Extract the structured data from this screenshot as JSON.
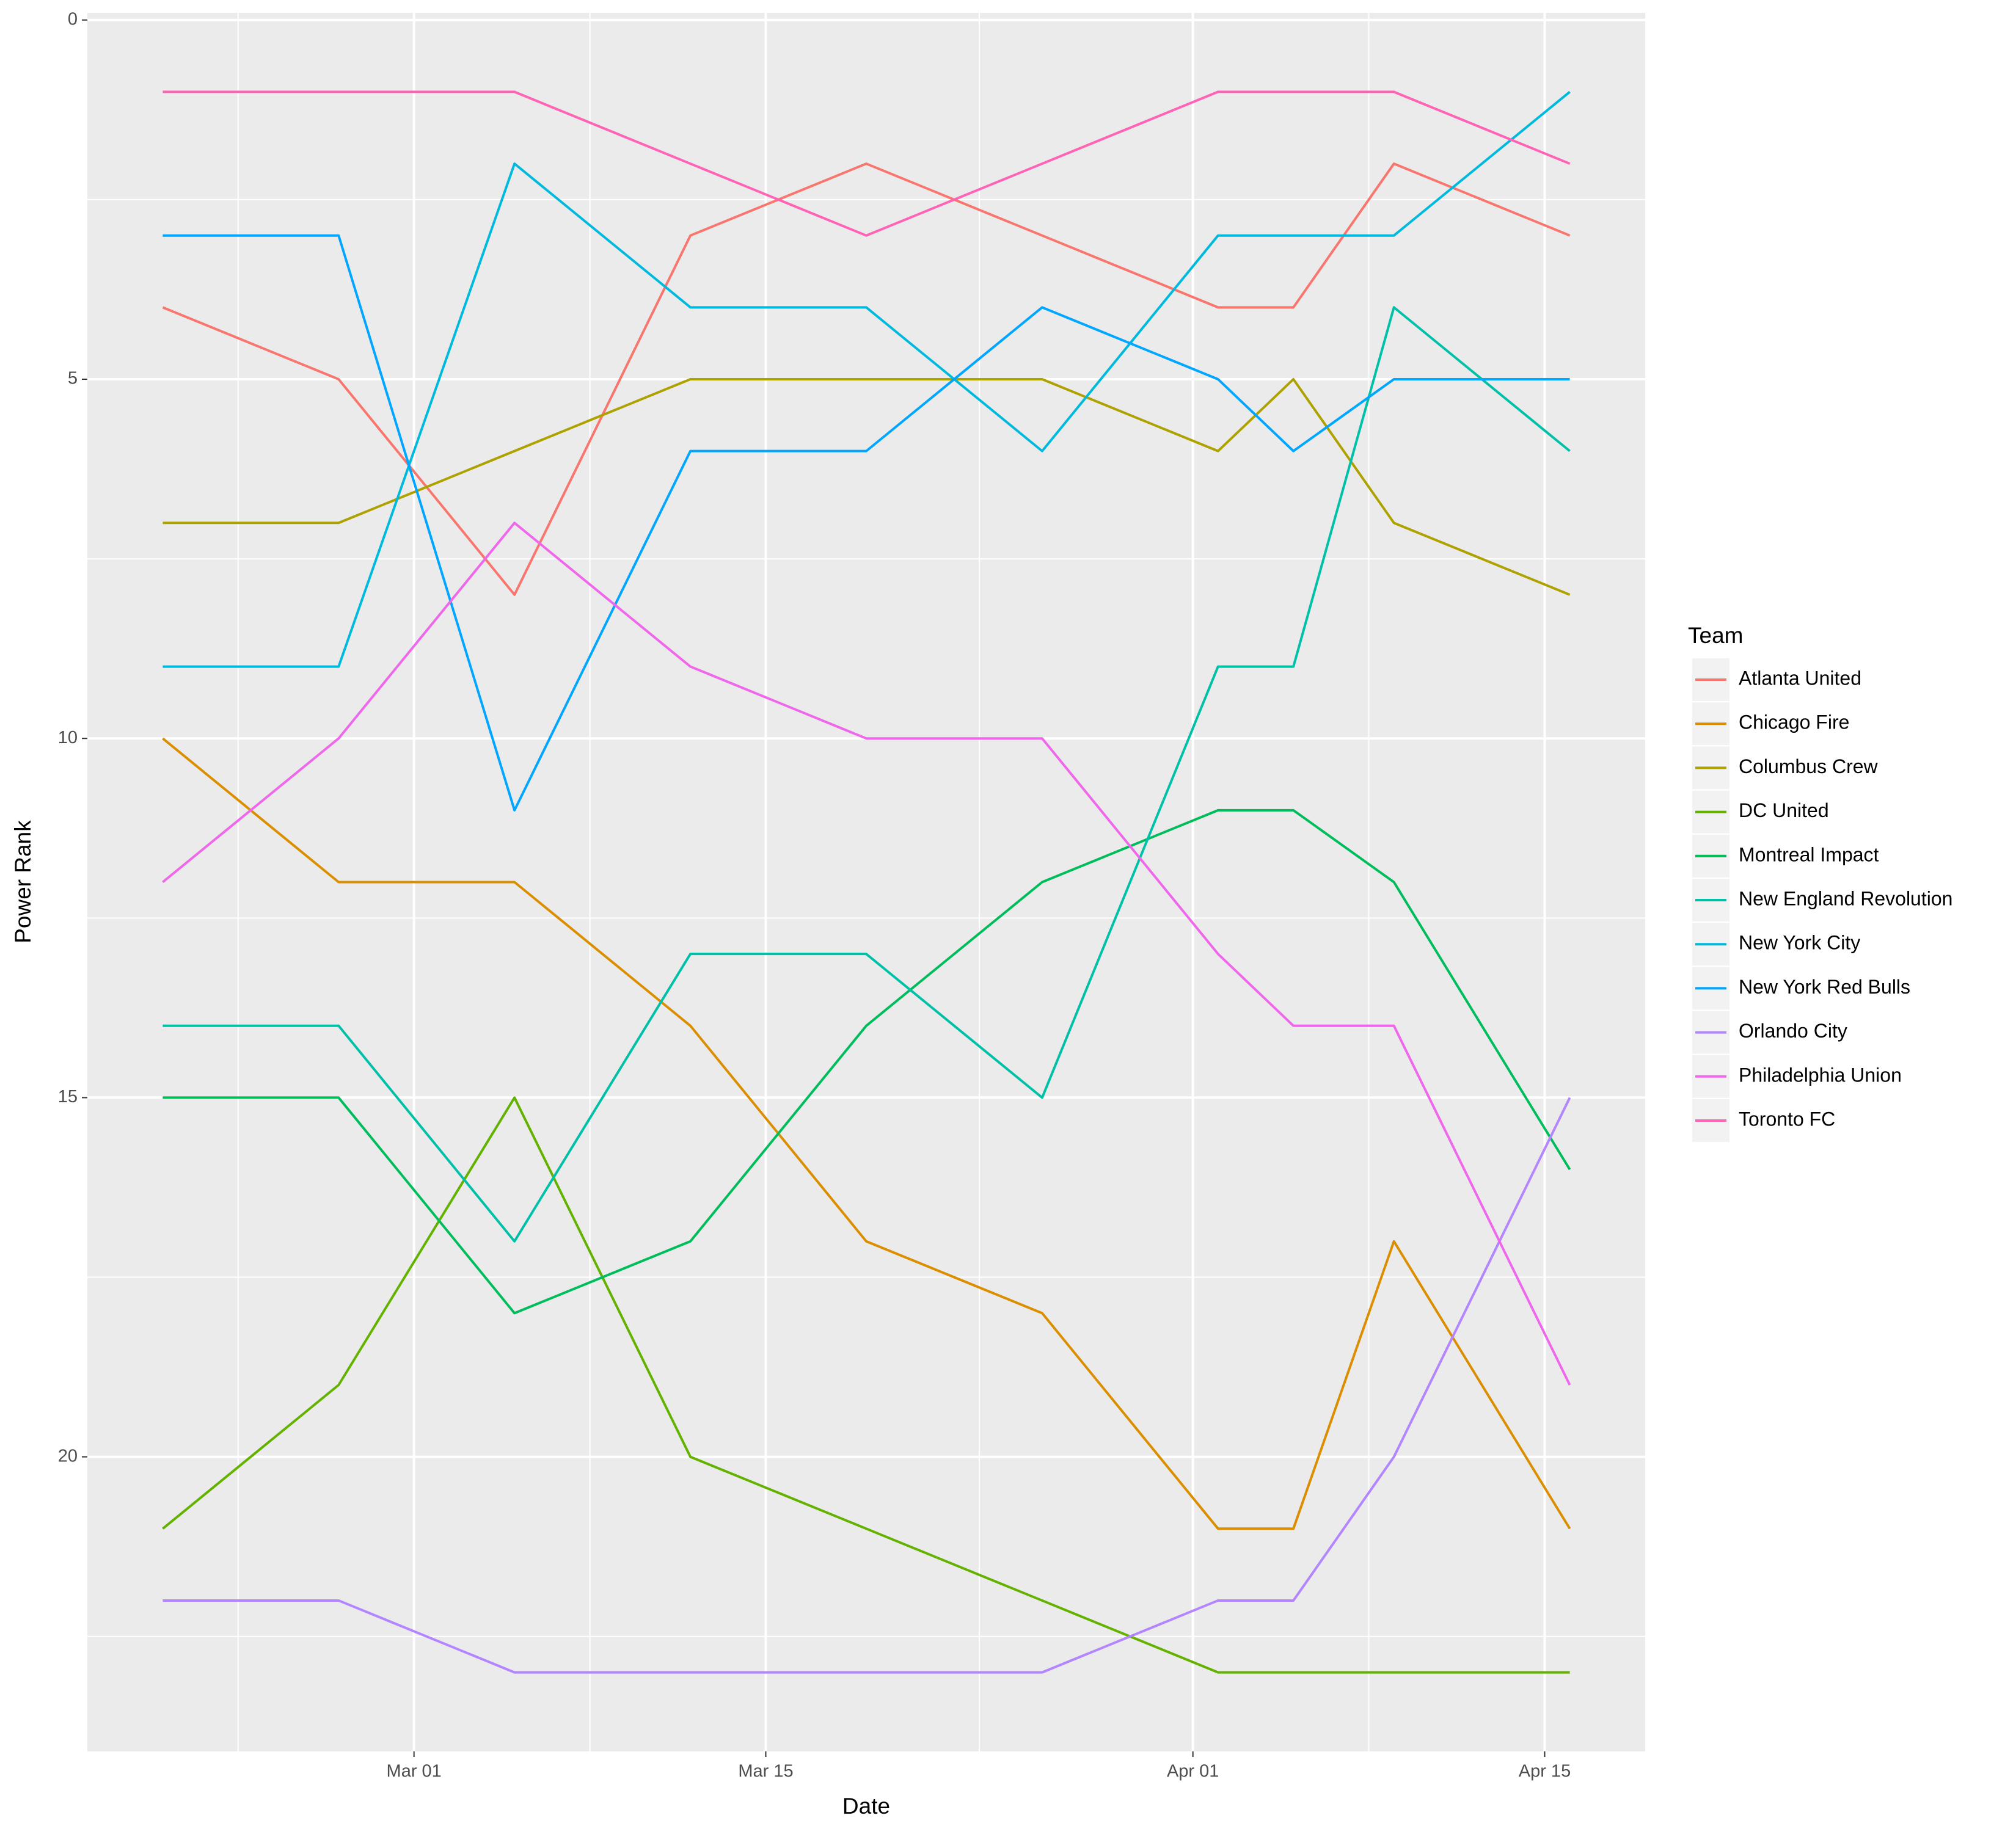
{
  "chart_data": {
    "type": "line",
    "x_label": "Date",
    "y_label": "Power Rank",
    "legend_title": "Team",
    "x": [
      "Feb 19",
      "Feb 26",
      "Mar 05",
      "Mar 12",
      "Mar 19",
      "Mar 26",
      "Apr 02",
      "Apr 05",
      "Apr 09",
      "Apr 16"
    ],
    "xlim": [
      "Feb 16",
      "Apr 19"
    ],
    "xticks": [
      "Mar 01",
      "Mar 15",
      "Apr 01",
      "Apr 15"
    ],
    "ylim": [
      24.1,
      -0.1
    ],
    "yticks": [
      0,
      5,
      10,
      15,
      20
    ],
    "y_reversed": true,
    "grid": true,
    "legend_position": "right",
    "series": [
      {
        "name": "Atlanta United",
        "color": "#F8766D",
        "values": [
          4,
          5,
          8,
          3,
          2,
          3,
          4,
          4,
          2,
          3
        ]
      },
      {
        "name": "Chicago Fire",
        "color": "#DB8E00",
        "values": [
          10,
          12,
          12,
          14,
          17,
          18,
          21,
          21,
          17,
          21
        ]
      },
      {
        "name": "Columbus Crew",
        "color": "#AEA200",
        "values": [
          7,
          7,
          6,
          5,
          5,
          5,
          6,
          5,
          7,
          8
        ]
      },
      {
        "name": "DC United",
        "color": "#64B200",
        "values": [
          21,
          19,
          15,
          20,
          21,
          22,
          23,
          23,
          23,
          23
        ]
      },
      {
        "name": "Montreal Impact",
        "color": "#00BD5C",
        "values": [
          15,
          15,
          18,
          17,
          14,
          12,
          11,
          11,
          12,
          16
        ]
      },
      {
        "name": "New England Revolution",
        "color": "#00C1A7",
        "values": [
          14,
          14,
          17,
          13,
          13,
          15,
          9,
          9,
          4,
          6
        ]
      },
      {
        "name": "New York City",
        "color": "#00BADE",
        "values": [
          9,
          9,
          2,
          4,
          4,
          6,
          3,
          3,
          3,
          1
        ]
      },
      {
        "name": "New York Red Bulls",
        "color": "#00A6FF",
        "values": [
          3,
          3,
          11,
          6,
          6,
          4,
          5,
          6,
          5,
          5
        ]
      },
      {
        "name": "Orlando City",
        "color": "#B385FF",
        "values": [
          22,
          22,
          23,
          23,
          23,
          23,
          22,
          22,
          20,
          15
        ]
      },
      {
        "name": "Philadelphia Union",
        "color": "#EF67EB",
        "values": [
          12,
          10,
          7,
          9,
          10,
          10,
          13,
          14,
          14,
          19
        ]
      },
      {
        "name": "Toronto FC",
        "color": "#FF63B6",
        "values": [
          1,
          1,
          1,
          2,
          3,
          2,
          1,
          1,
          1,
          2
        ]
      }
    ]
  }
}
